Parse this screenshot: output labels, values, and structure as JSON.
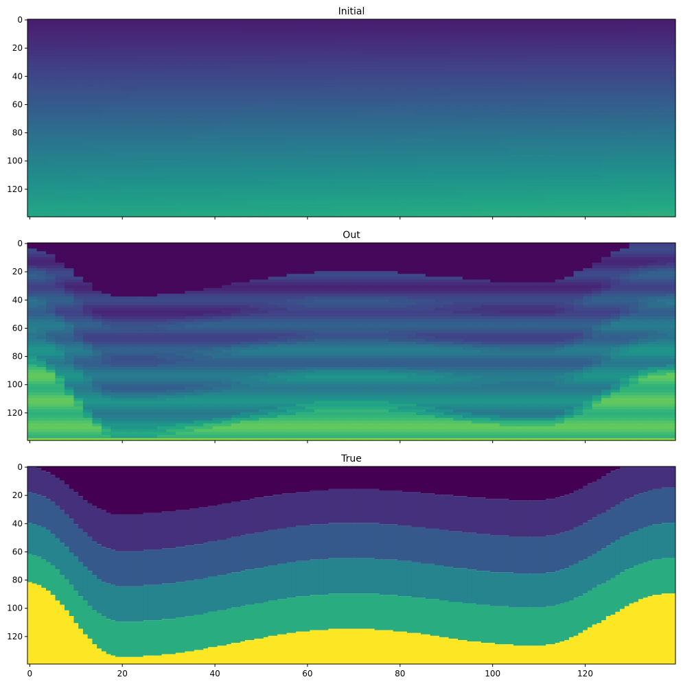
{
  "chart_data": [
    {
      "type": "heatmap",
      "title": "Initial",
      "colormap": "viridis",
      "x_range": [
        0,
        139
      ],
      "y_range": [
        0,
        139
      ],
      "y_inverted": true,
      "x_ticks": [
        0,
        20,
        40,
        60,
        80,
        100,
        120
      ],
      "y_ticks": [
        0,
        20,
        40,
        60,
        80,
        100,
        120
      ],
      "x_tick_labels_visible": false,
      "field": "smooth_gradient",
      "value_top": 0.08,
      "value_bottom": 0.6
    },
    {
      "type": "heatmap",
      "title": "Out",
      "colormap": "viridis",
      "x_range": [
        0,
        139
      ],
      "y_range": [
        0,
        139
      ],
      "y_inverted": true,
      "x_ticks": [
        0,
        20,
        40,
        60,
        80,
        100,
        120
      ],
      "y_ticks": [
        0,
        20,
        40,
        60,
        80,
        100,
        120
      ],
      "x_tick_labels_visible": false,
      "field": "smoothed_layers"
    },
    {
      "type": "heatmap",
      "title": "True",
      "colormap": "viridis",
      "x_range": [
        0,
        139
      ],
      "y_range": [
        0,
        139
      ],
      "y_inverted": true,
      "x_ticks": [
        0,
        20,
        40,
        60,
        80,
        100,
        120
      ],
      "y_ticks": [
        0,
        20,
        40,
        60,
        80,
        100,
        120
      ],
      "x_tick_labels_visible": true,
      "field": "layers",
      "layer_values": [
        0.0,
        0.14,
        0.28,
        0.45,
        0.62,
        1.0
      ],
      "boundary_depths": [
        {
          "x": [
            0,
            20,
            70,
            110,
            139
          ],
          "y": [
            0,
            34,
            16,
            24,
            -10
          ]
        },
        {
          "x": [
            0,
            20,
            70,
            110,
            139
          ],
          "y": [
            18,
            60,
            40,
            50,
            15
          ]
        },
        {
          "x": [
            0,
            20,
            70,
            110,
            139
          ],
          "y": [
            40,
            85,
            65,
            76,
            40
          ]
        },
        {
          "x": [
            0,
            20,
            70,
            110,
            139
          ],
          "y": [
            62,
            110,
            90,
            100,
            65
          ]
        },
        {
          "x": [
            0,
            20,
            70,
            110,
            139
          ],
          "y": [
            82,
            135,
            115,
            127,
            90
          ]
        }
      ]
    }
  ]
}
